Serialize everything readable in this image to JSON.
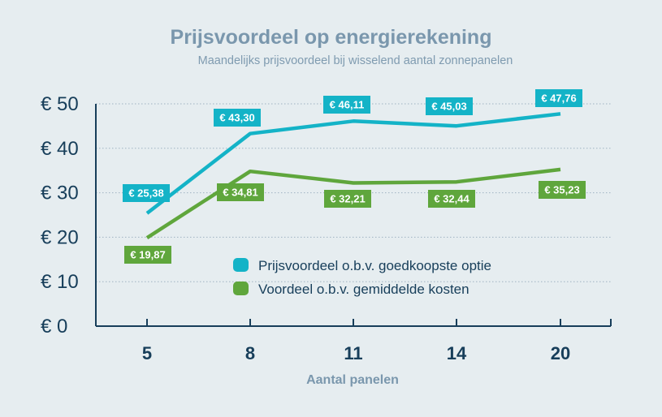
{
  "title": "Prijsvoordeel op energierekening",
  "subtitle": "Maandelijks prijsvoordeel bij wisselend aantal zonnepanelen",
  "colors": {
    "background": "#e6edf0",
    "axis": "#173e5a",
    "grid": "#9fb3c2",
    "series_teal": "#14b3c7",
    "series_green": "#5fa63c",
    "title": "#7a97ad"
  },
  "chart_data": {
    "type": "line",
    "title": "Prijsvoordeel op energierekening",
    "subtitle": "Maandelijks prijsvoordeel bij wisselend aantal zonnepanelen",
    "xlabel": "Aantal panelen",
    "ylabel": "",
    "categories": [
      "5",
      "8",
      "11",
      "14",
      "20"
    ],
    "ylim": [
      0,
      50
    ],
    "yticks": [
      0,
      10,
      20,
      30,
      40,
      50
    ],
    "ytick_labels": [
      "€ 0",
      "€ 10",
      "€ 20",
      "€ 30",
      "€ 40",
      "€ 50"
    ],
    "grid": true,
    "legend_position": "lower-right",
    "series": [
      {
        "name": "Prijsvoordeel o.b.v. goedkoopste optie",
        "color": "#14b3c7",
        "values": [
          25.38,
          43.3,
          46.11,
          45.03,
          47.76
        ],
        "labels": [
          "€ 25,38",
          "€ 43,30",
          "€ 46,11",
          "€ 45,03",
          "€ 47,76"
        ]
      },
      {
        "name": "Voordeel o.b.v. gemiddelde kosten",
        "color": "#5fa63c",
        "values": [
          19.87,
          34.81,
          32.21,
          32.44,
          35.23
        ],
        "labels": [
          "€ 19,87",
          "€ 34,81",
          "€ 32,21",
          "€ 32,44",
          "€ 35,23"
        ]
      }
    ]
  }
}
